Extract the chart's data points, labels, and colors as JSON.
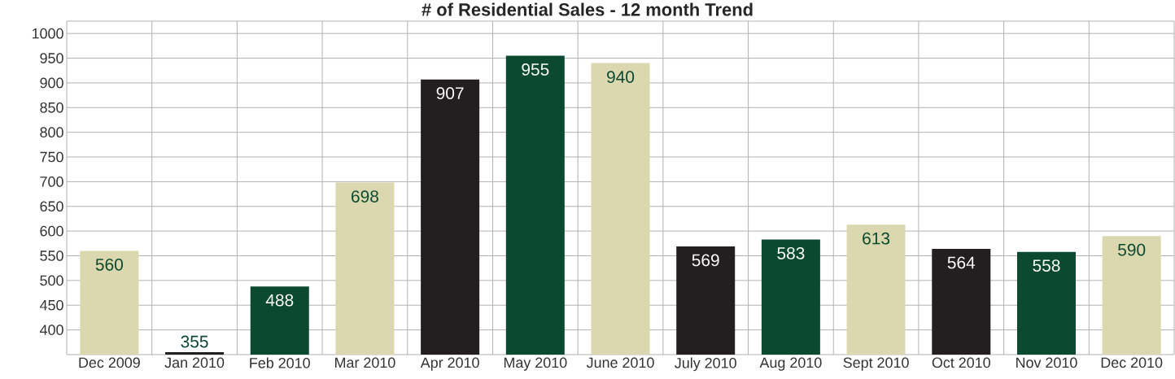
{
  "chart_data": {
    "type": "bar",
    "title": "# of Residential Sales - 12 month Trend",
    "categories": [
      "Dec 2009",
      "Jan 2010",
      "Feb 2010",
      "Mar 2010",
      "Apr 2010",
      "May 2010",
      "June 2010",
      "July 2010",
      "Aug 2010",
      "Sept 2010",
      "Oct 2010",
      "Nov 2010",
      "Dec 2010"
    ],
    "values": [
      560,
      355,
      488,
      698,
      907,
      955,
      940,
      569,
      583,
      613,
      564,
      558,
      590
    ],
    "colors": [
      "#dbd8b0",
      "#231f20",
      "#0b4a30",
      "#dbd8b0",
      "#231f20",
      "#0b4a30",
      "#dbd8b0",
      "#231f20",
      "#0b4a30",
      "#dbd8b0",
      "#231f20",
      "#0b4a30",
      "#dbd8b0"
    ],
    "data_labels": true,
    "grid": true,
    "ylim": [
      350,
      1025
    ],
    "yticks": [
      400,
      450,
      500,
      550,
      600,
      650,
      700,
      750,
      800,
      850,
      900,
      950,
      1000
    ]
  }
}
